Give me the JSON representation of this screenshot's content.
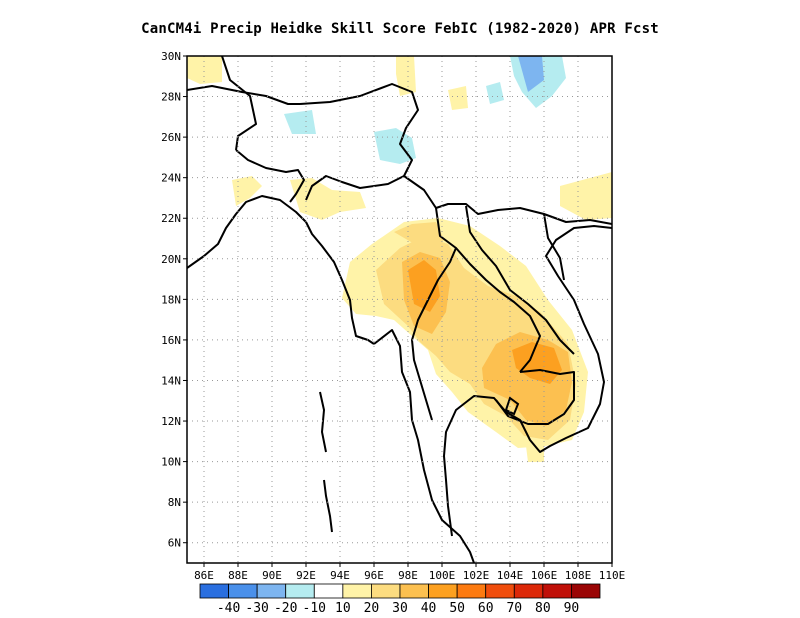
{
  "title": "CanCM4i Precip Heidke Skill Score FebIC (1982-2020) APR Fcst",
  "map": {
    "lon_range": [
      85,
      110
    ],
    "lat_range": [
      5,
      30
    ],
    "x_ticks": [
      {
        "value": 86,
        "label": "86E"
      },
      {
        "value": 88,
        "label": "88E"
      },
      {
        "value": 90,
        "label": "90E"
      },
      {
        "value": 92,
        "label": "92E"
      },
      {
        "value": 94,
        "label": "94E"
      },
      {
        "value": 96,
        "label": "96E"
      },
      {
        "value": 98,
        "label": "98E"
      },
      {
        "value": 100,
        "label": "100E"
      },
      {
        "value": 102,
        "label": "102E"
      },
      {
        "value": 104,
        "label": "104E"
      },
      {
        "value": 106,
        "label": "106E"
      },
      {
        "value": 108,
        "label": "108E"
      },
      {
        "value": 110,
        "label": "110E"
      }
    ],
    "y_ticks": [
      {
        "value": 6,
        "label": "6N"
      },
      {
        "value": 8,
        "label": "8N"
      },
      {
        "value": 10,
        "label": "10N"
      },
      {
        "value": 12,
        "label": "12N"
      },
      {
        "value": 14,
        "label": "14N"
      },
      {
        "value": 16,
        "label": "16N"
      },
      {
        "value": 18,
        "label": "18N"
      },
      {
        "value": 20,
        "label": "20N"
      },
      {
        "value": 22,
        "label": "22N"
      },
      {
        "value": 24,
        "label": "24N"
      },
      {
        "value": 26,
        "label": "26N"
      },
      {
        "value": 28,
        "label": "28N"
      },
      {
        "value": 30,
        "label": "30N"
      }
    ],
    "gridlines": "dotted"
  },
  "colorbar": {
    "colors": [
      "#2a6fe0",
      "#4a90ea",
      "#7db5f0",
      "#b5ecf0",
      "#ffffff",
      "#fff3a8",
      "#fcdc80",
      "#fcc050",
      "#fca020",
      "#fc7a10",
      "#f04d0c",
      "#dc2808",
      "#c01008",
      "#9a0505"
    ],
    "labels": [
      "-40",
      "-30",
      "-20",
      "-10",
      "10",
      "20",
      "30",
      "40",
      "50",
      "60",
      "70",
      "80",
      "90"
    ]
  }
}
